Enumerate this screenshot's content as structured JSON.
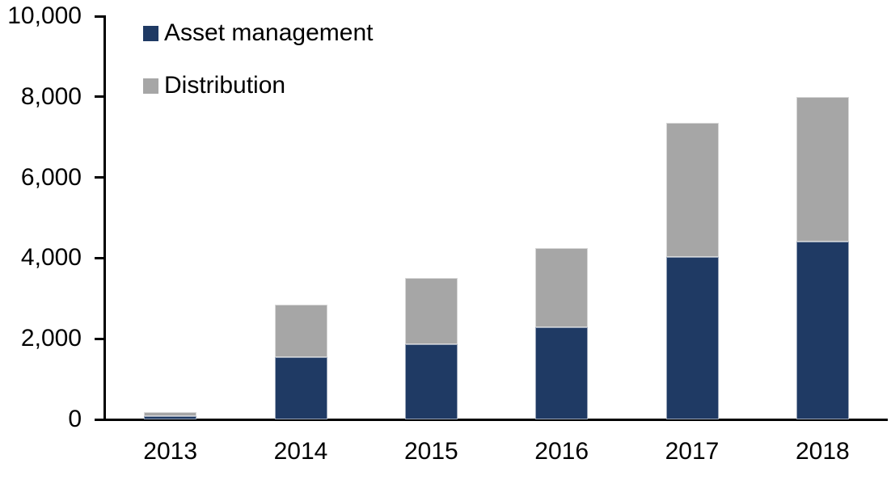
{
  "chart_data": {
    "type": "bar",
    "stacked": true,
    "categories": [
      "2013",
      "2014",
      "2015",
      "2016",
      "2017",
      "2018"
    ],
    "series": [
      {
        "name": "Asset management",
        "color": "#1f3a64",
        "values": [
          80,
          1550,
          1870,
          2290,
          4030,
          4400
        ]
      },
      {
        "name": "Distribution",
        "color": "#a6a6a6",
        "values": [
          100,
          1300,
          1630,
          1950,
          3330,
          3600
        ]
      }
    ],
    "totals": [
      180,
      2850,
      3500,
      4240,
      7360,
      8000
    ],
    "ylim": [
      0,
      10000
    ],
    "y_ticks": [
      0,
      2000,
      4000,
      6000,
      8000,
      10000
    ],
    "y_tick_labels": [
      "0",
      "2,000",
      "4,000",
      "6,000",
      "8,000",
      "10,000"
    ],
    "grid": false,
    "legend_position": "top-left",
    "axis_color": "#000000",
    "text_color": "#000000"
  }
}
